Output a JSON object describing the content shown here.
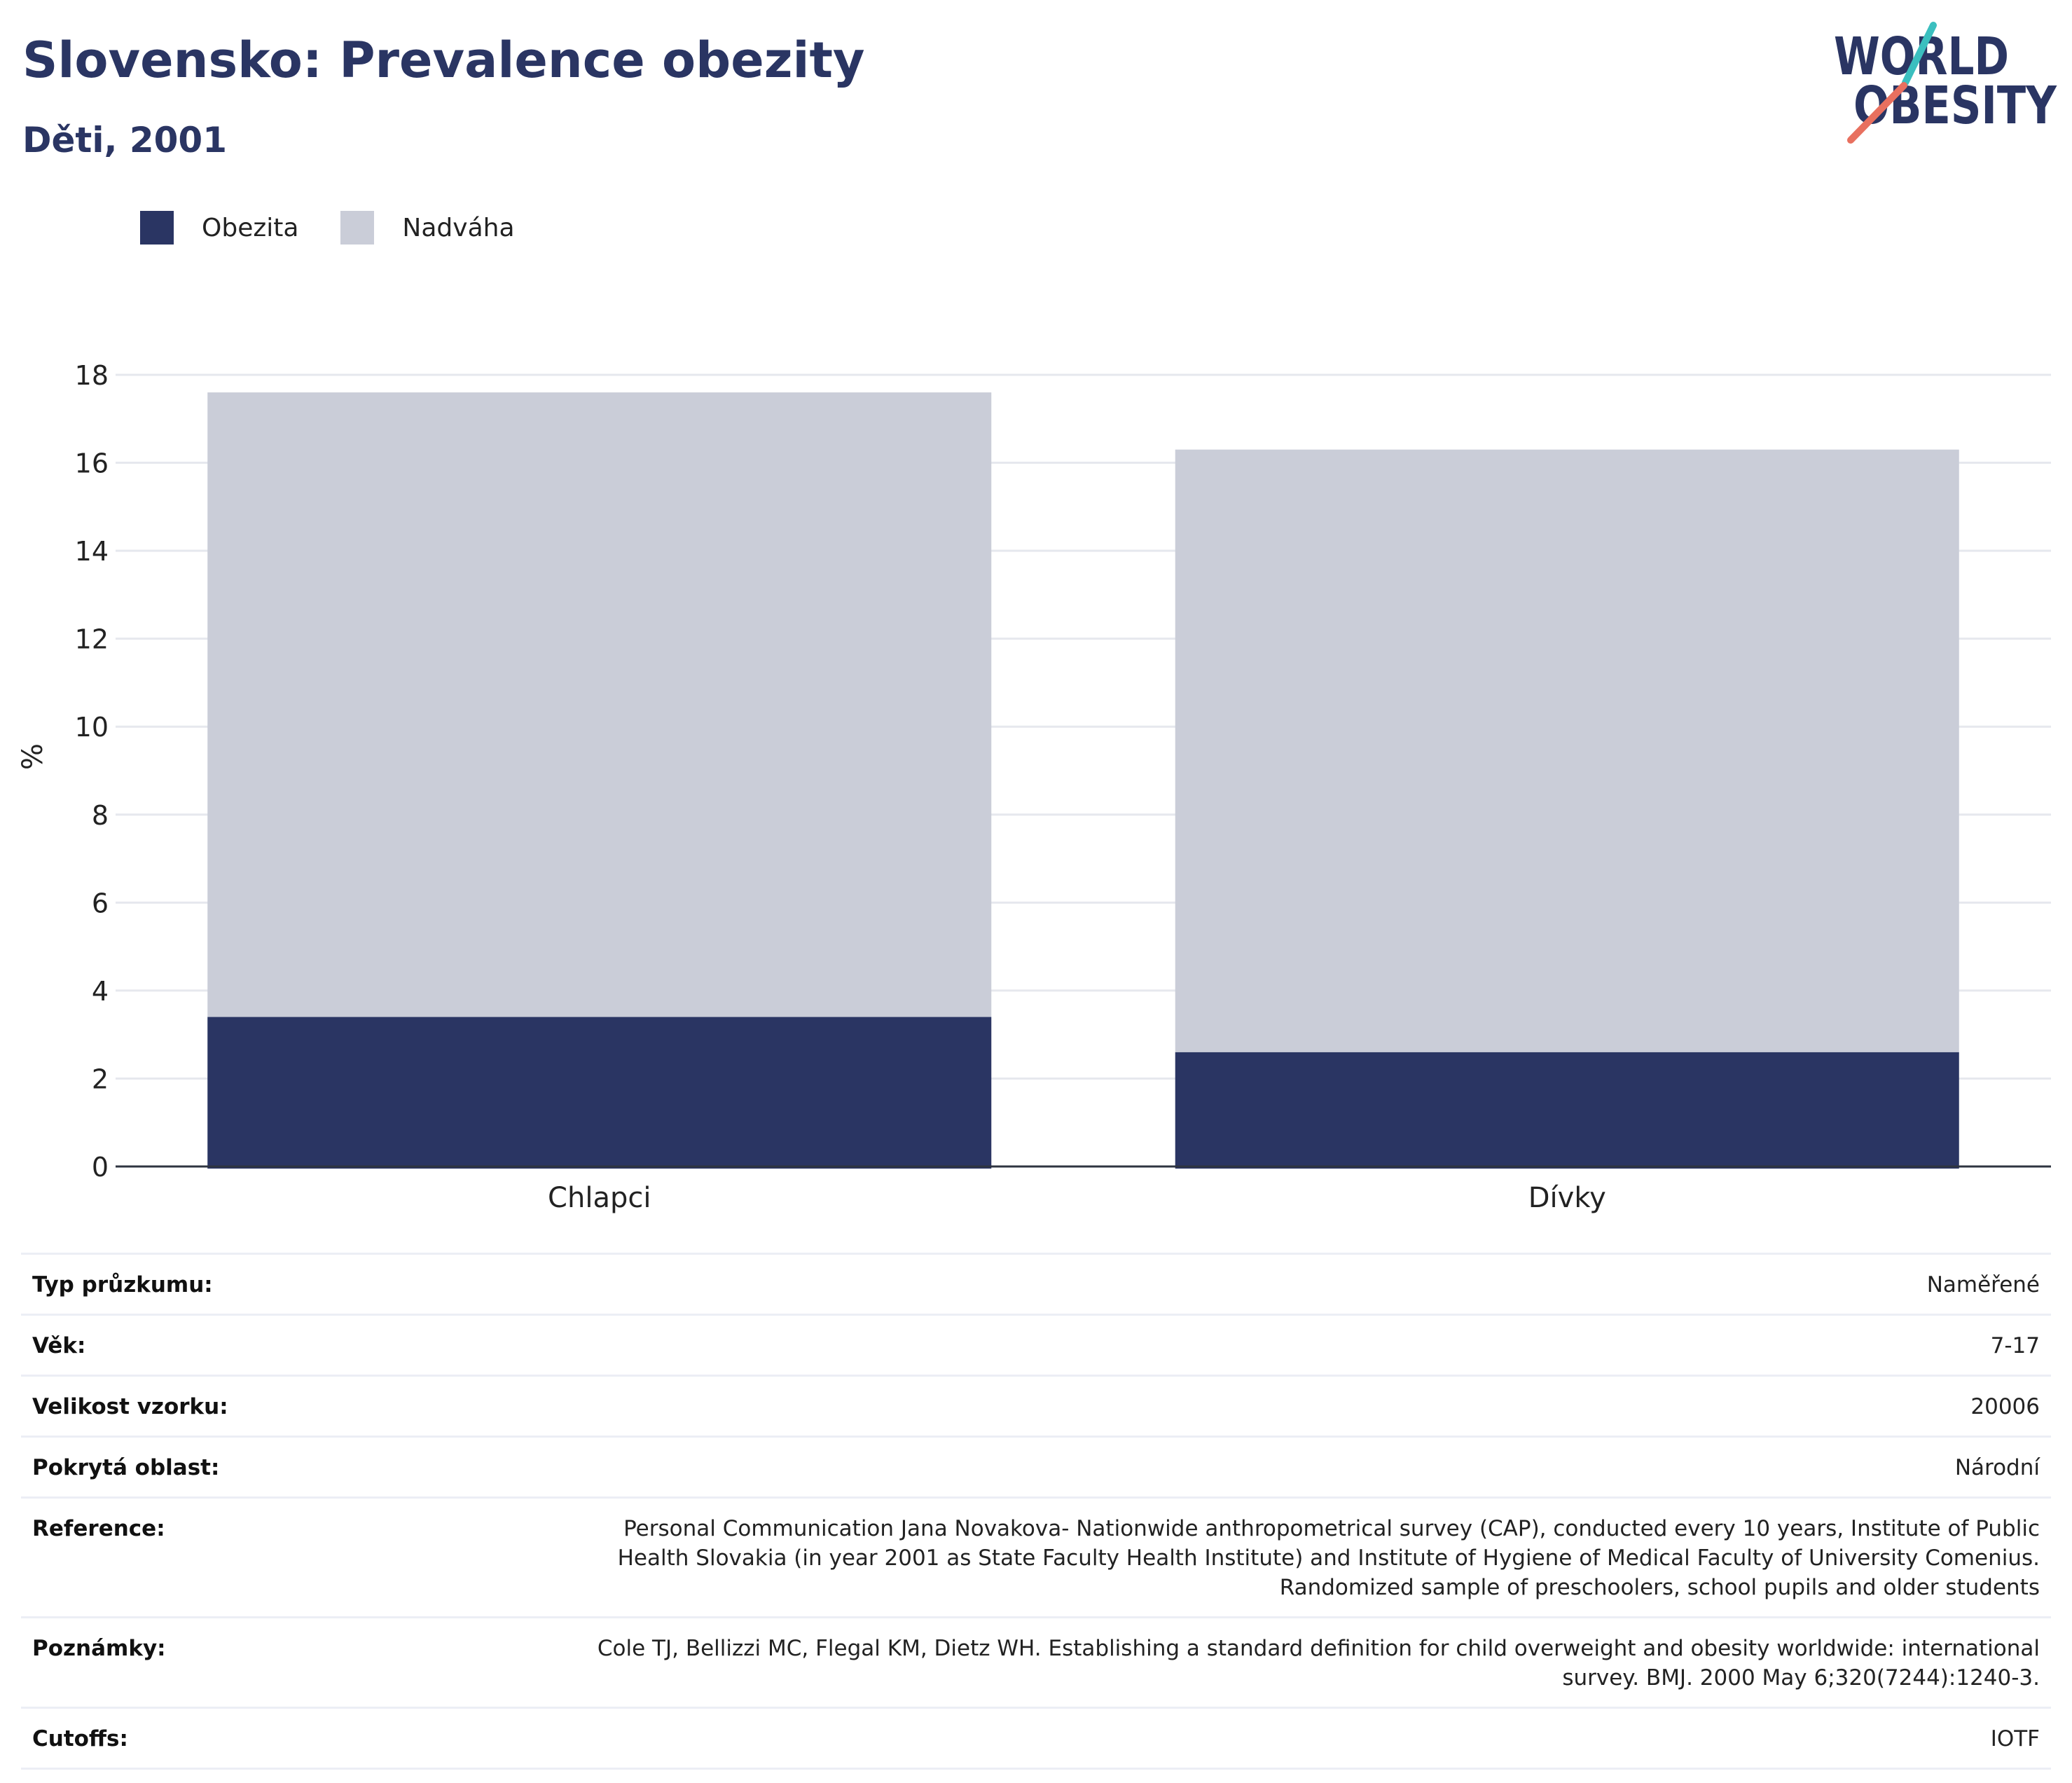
{
  "header": {
    "title": "Slovensko: Prevalence obezity",
    "subtitle": "Děti, 2001"
  },
  "logo": {
    "line1": "WORLD",
    "line2": "OBESITY",
    "colors": {
      "text": "#2a3563",
      "slash_top": "#3bbfbf",
      "slash_bottom": "#e8705f"
    }
  },
  "chart_data": {
    "type": "bar",
    "stacked": true,
    "categories": [
      "Chlapci",
      "Dívky"
    ],
    "series": [
      {
        "name": "Obezita",
        "color": "#2a3563",
        "values": [
          3.4,
          2.6
        ]
      },
      {
        "name": "Nadváha",
        "color": "#cacdd8",
        "values": [
          14.2,
          13.7
        ]
      }
    ],
    "ylabel": "%",
    "ylim": [
      0,
      18
    ],
    "yticks": [
      0,
      2,
      4,
      6,
      8,
      10,
      12,
      14,
      16,
      18
    ],
    "grid": true,
    "legend_position": "top-left"
  },
  "info": [
    {
      "label": "Typ průzkumu:",
      "value": "Naměřené"
    },
    {
      "label": "Věk:",
      "value": "7-17"
    },
    {
      "label": "Velikost vzorku:",
      "value": "20006"
    },
    {
      "label": "Pokrytá oblast:",
      "value": "Národní"
    },
    {
      "label": "Reference:",
      "value": "Personal Communication Jana Novakova- Nationwide anthropometrical survey (CAP), conducted every 10 years, Institute of Public Health Slovakia (in year 2001 as State Faculty Health Institute) and Institute of Hygiene of Medical Faculty of University Comenius. Randomized sample of preschoolers, school pupils and older students"
    },
    {
      "label": "Poznámky:",
      "value": "Cole TJ, Bellizzi MC, Flegal KM, Dietz WH. Establishing a standard definition for child overweight and obesity worldwide: international survey. BMJ. 2000 May 6;320(7244):1240-3."
    },
    {
      "label": "Cutoffs:",
      "value": "IOTF"
    }
  ]
}
